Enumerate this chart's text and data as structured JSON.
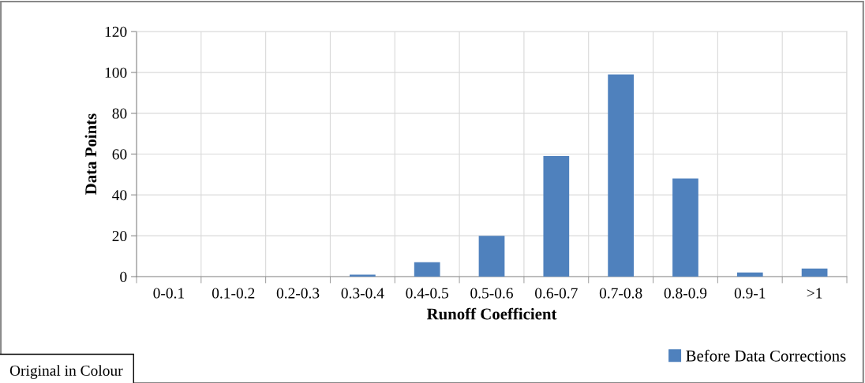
{
  "chart_data": {
    "type": "bar",
    "xlabel": "Runoff Coefficient",
    "ylabel": "Data Points",
    "categories": [
      "0-0.1",
      "0.1-0.2",
      "0.2-0.3",
      "0.3-0.4",
      "0.4-0.5",
      "0.5-0.6",
      "0.6-0.7",
      "0.7-0.8",
      "0.8-0.9",
      "0.9-1",
      ">1"
    ],
    "series": [
      {
        "name": "Before Data Corrections",
        "color": "#4f81bd",
        "values": [
          0,
          0,
          0,
          1,
          7,
          20,
          59,
          99,
          48,
          2,
          4
        ]
      }
    ],
    "ylim": [
      0,
      120
    ],
    "yticks": [
      0,
      20,
      40,
      60,
      80,
      100,
      120
    ],
    "grid": true,
    "legend": "bottom right",
    "annotations": [
      "Original in Colour"
    ]
  }
}
